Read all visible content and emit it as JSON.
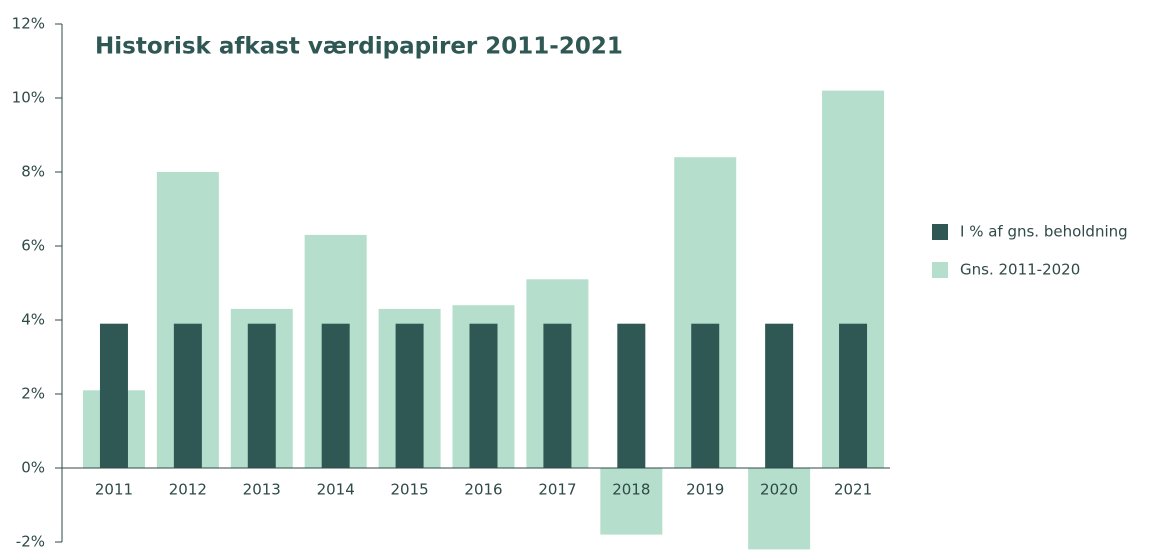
{
  "chart_data": {
    "type": "bar",
    "title": "Historisk afkast værdipapirer 2011-2021",
    "categories": [
      "2011",
      "2012",
      "2013",
      "2014",
      "2015",
      "2016",
      "2017",
      "2018",
      "2019",
      "2020",
      "2021"
    ],
    "series": [
      {
        "name": "I % af gns. beholdning",
        "color": "#2f5753",
        "values": [
          3.9,
          3.9,
          3.9,
          3.9,
          3.9,
          3.9,
          3.9,
          3.9,
          3.9,
          3.9,
          3.9
        ]
      },
      {
        "name": "Gns. 2011-2020",
        "color": "#b5dfcc",
        "values": [
          2.1,
          8.0,
          4.3,
          6.3,
          4.3,
          4.4,
          5.1,
          -1.8,
          8.4,
          -2.2,
          10.2
        ]
      }
    ],
    "ylim": [
      -2,
      12
    ],
    "yticks": [
      {
        "value": -2,
        "label": "-2%"
      },
      {
        "value": 0,
        "label": "0%"
      },
      {
        "value": 2,
        "label": "2%"
      },
      {
        "value": 4,
        "label": "4%"
      },
      {
        "value": 6,
        "label": "6%"
      },
      {
        "value": 8,
        "label": "8%"
      },
      {
        "value": 10,
        "label": "10%"
      },
      {
        "value": 12,
        "label": "12%"
      }
    ],
    "legend": "right"
  }
}
